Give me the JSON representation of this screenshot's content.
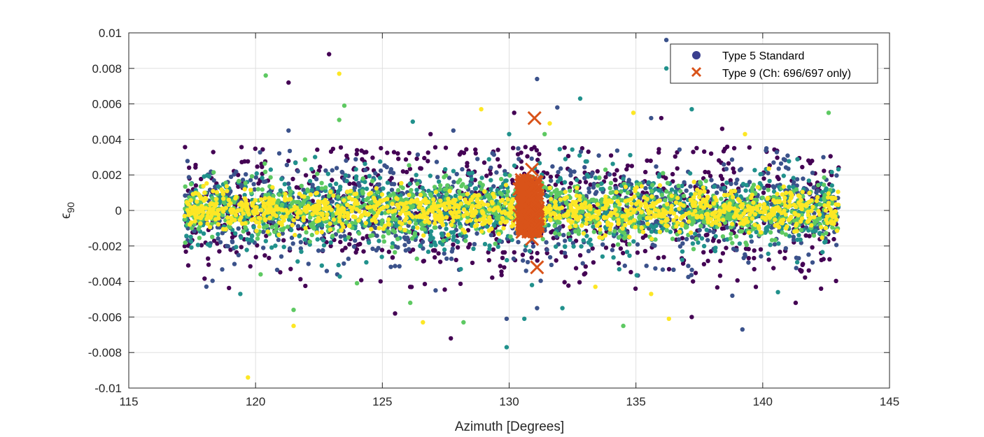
{
  "chart_data": {
    "type": "scatter",
    "xlabel": "Azimuth [Degrees]",
    "ylabel_main": "ϵ",
    "ylabel_sub": "90",
    "xlim": [
      115,
      145
    ],
    "ylim": [
      -0.01,
      0.01
    ],
    "xticks": [
      115,
      120,
      125,
      130,
      135,
      140,
      145
    ],
    "yticks": [
      -0.01,
      -0.008,
      -0.006,
      -0.004,
      -0.002,
      0,
      0.002,
      0.004,
      0.006,
      0.008,
      0.01
    ],
    "ytick_labels": [
      "-0.01",
      "-0.008",
      "-0.006",
      "-0.004",
      "-0.002",
      "0",
      "0.002",
      "0.004",
      "0.006",
      "0.008",
      "0.01"
    ],
    "xtick_labels": [
      "115",
      "120",
      "125",
      "130",
      "135",
      "140",
      "145"
    ],
    "grid": true,
    "legend_position": "top-right",
    "colors": {
      "viridis_0": "#440154",
      "viridis_1": "#3b528b",
      "viridis_2": "#21918c",
      "viridis_3": "#5ec962",
      "viridis_4": "#fde725",
      "type9": "#d95319",
      "legend_dot": "#3a3f8f"
    },
    "series": [
      {
        "name": "Type 5 Standard",
        "marker": "dot",
        "x_range": [
          117.2,
          143.0
        ],
        "points": [
          [
            122.9,
            0.0088
          ],
          [
            136.2,
            0.0096
          ],
          [
            136.2,
            0.008
          ],
          [
            120.4,
            0.0076
          ],
          [
            123.3,
            0.0077
          ],
          [
            121.3,
            0.0072
          ],
          [
            131.1,
            0.0074
          ],
          [
            132.8,
            0.0063
          ],
          [
            123.5,
            0.0059
          ],
          [
            128.9,
            0.0057
          ],
          [
            130.2,
            0.0055
          ],
          [
            131.9,
            0.0058
          ],
          [
            137.2,
            0.0057
          ],
          [
            142.6,
            0.0055
          ],
          [
            134.9,
            0.0055
          ],
          [
            136.0,
            0.0052
          ],
          [
            135.6,
            0.0052
          ],
          [
            126.2,
            0.005
          ],
          [
            123.3,
            0.0051
          ],
          [
            131.6,
            0.0049
          ],
          [
            138.4,
            0.0046
          ],
          [
            121.3,
            0.0045
          ],
          [
            130.0,
            0.0043
          ],
          [
            131.4,
            0.0043
          ],
          [
            139.3,
            0.0043
          ],
          [
            126.9,
            0.0043
          ],
          [
            127.8,
            0.0045
          ],
          [
            119.4,
            -0.0047
          ],
          [
            121.5,
            -0.0056
          ],
          [
            121.5,
            -0.0065
          ],
          [
            127.7,
            -0.0072
          ],
          [
            129.9,
            -0.0061
          ],
          [
            129.9,
            -0.0077
          ],
          [
            128.2,
            -0.0063
          ],
          [
            126.6,
            -0.0063
          ],
          [
            125.5,
            -0.0058
          ],
          [
            131.1,
            -0.0055
          ],
          [
            132.1,
            -0.0055
          ],
          [
            134.5,
            -0.0065
          ],
          [
            136.3,
            -0.0061
          ],
          [
            137.2,
            -0.006
          ],
          [
            139.2,
            -0.0067
          ],
          [
            130.6,
            -0.0061
          ],
          [
            120.2,
            -0.0036
          ],
          [
            119.7,
            -0.0094
          ],
          [
            141.3,
            -0.0052
          ],
          [
            138.8,
            -0.0048
          ],
          [
            140.6,
            -0.0046
          ],
          [
            124.0,
            -0.0041
          ],
          [
            135.6,
            -0.0047
          ],
          [
            142.3,
            -0.0044
          ],
          [
            127.1,
            -0.0045
          ],
          [
            130.9,
            -0.0042
          ],
          [
            126.1,
            -0.0052
          ],
          [
            133.4,
            -0.0043
          ]
        ]
      },
      {
        "name": "Type 9 (Ch: 696/697 only)",
        "marker": "x",
        "points": [
          [
            131.0,
            0.0052
          ],
          [
            130.9,
            0.0023
          ],
          [
            130.4,
            0.0012
          ],
          [
            130.7,
            0.001
          ],
          [
            130.9,
            0.0008
          ],
          [
            131.0,
            0.0005
          ],
          [
            130.6,
            0.0003
          ],
          [
            130.4,
            -0.0003
          ],
          [
            130.8,
            -0.0005
          ],
          [
            131.0,
            -0.001
          ],
          [
            130.7,
            -0.0008
          ],
          [
            130.9,
            -0.0016
          ],
          [
            131.1,
            -0.0032
          ]
        ],
        "column_x": [
          130.4,
          131.2
        ],
        "column_y": [
          -0.0013,
          0.0018
        ]
      }
    ]
  }
}
